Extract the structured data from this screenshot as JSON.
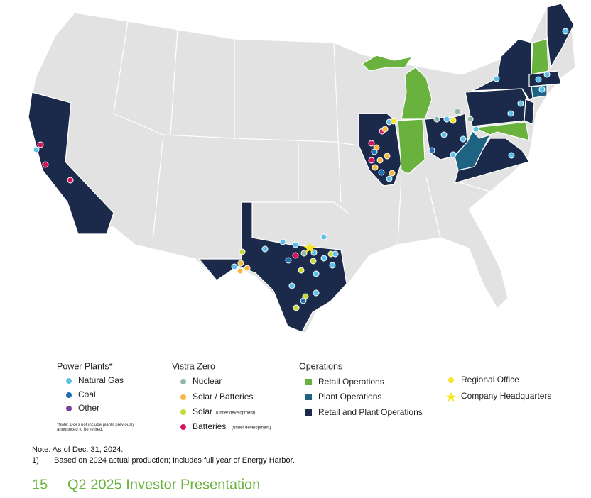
{
  "legend": {
    "power_plants": {
      "title": "Power Plants*",
      "items": [
        "Natural Gas",
        "Coal",
        "Other"
      ],
      "note": "*Note: Does not include plants previously announced to be retired."
    },
    "vistra_zero": {
      "title": "Vistra Zero",
      "items": [
        "Nuclear",
        "Solar / Batteries"
      ],
      "solar": "Solar",
      "solar_note": "(under development)",
      "batteries": "Batteries",
      "batteries_note": "(under development)"
    },
    "operations": {
      "title": "Operations",
      "items": [
        "Retail Operations",
        "Plant Operations",
        "Retail and Plant Operations"
      ]
    },
    "offices": [
      "Regional Office",
      "Company Headquarters"
    ]
  },
  "footer": {
    "note": "Note: As of Dec. 31, 2024.",
    "footnote_marker": "1)",
    "footnote": "Based on 2024 actual production; Includes full year of Energy Harbor.",
    "page_number": "15",
    "title": "Q2 2025 Investor Presentation"
  }
}
